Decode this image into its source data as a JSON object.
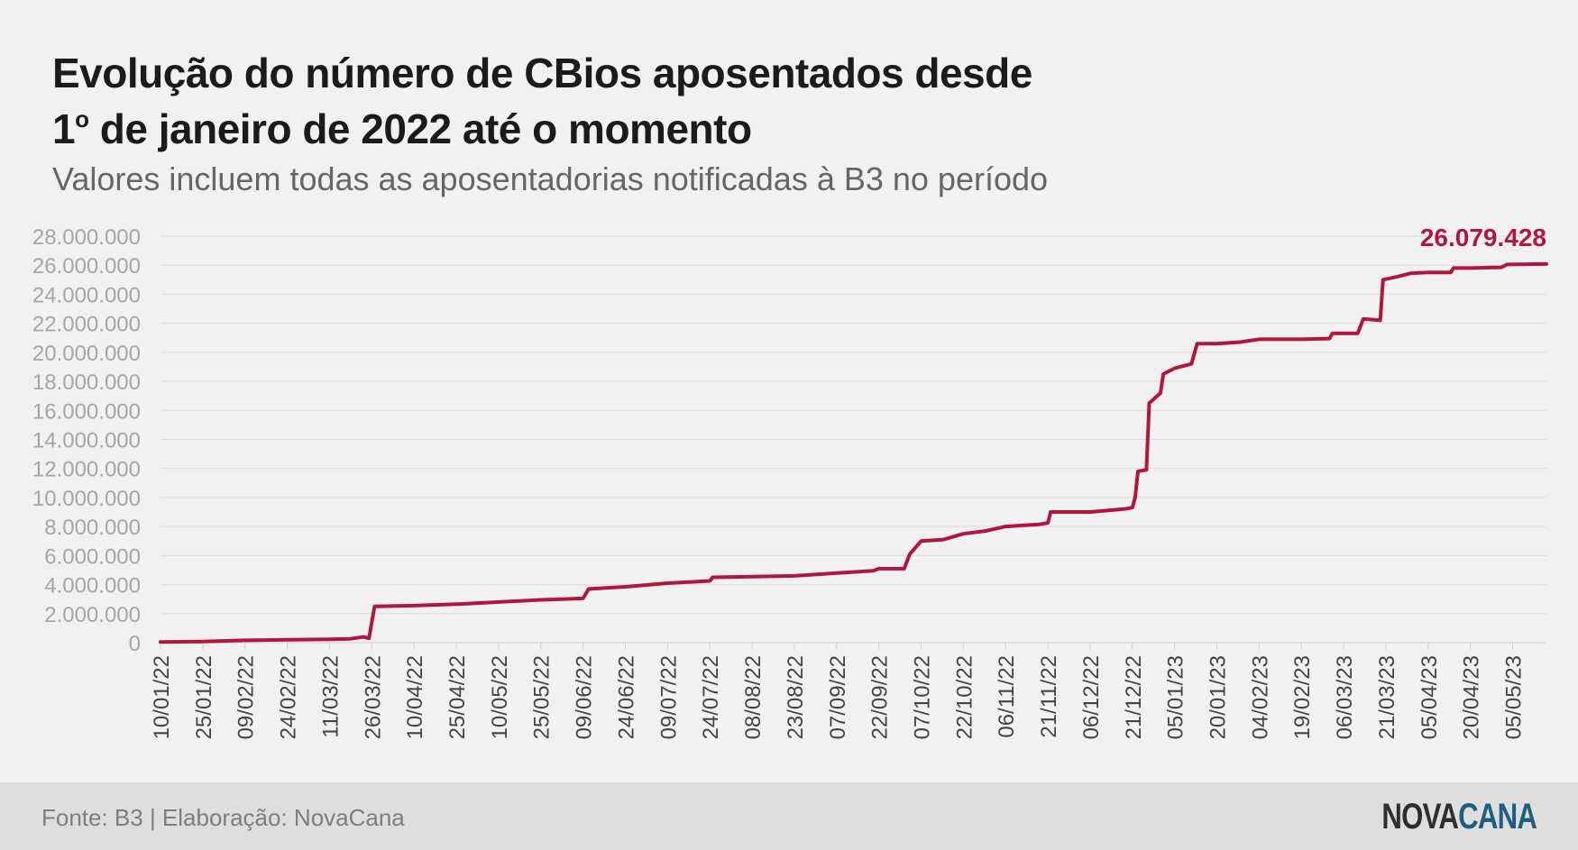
{
  "header": {
    "title_line1": "Evolução do número de CBios aposentados desde",
    "title_line2_prefix": "1",
    "title_line2_sup": "o",
    "title_line2_rest": " de janeiro de 2022 até o momento",
    "subtitle": "Valores incluem todas as aposentadorias notificadas à B3 no período"
  },
  "footer": {
    "source": "Fonte: B3 | Elaboração: NovaCana",
    "logo_part1": "NOVA",
    "logo_part2": "CANA"
  },
  "colors": {
    "line": "#b0173f",
    "last_label": "#b0173f",
    "grid": "#dcdcdc",
    "tick_label": "#a6a6a6"
  },
  "chart_data": {
    "type": "line",
    "last_value_label": "26.079.428",
    "ylim": [
      0,
      28000000
    ],
    "yticks": [
      0,
      2000000,
      4000000,
      6000000,
      8000000,
      10000000,
      12000000,
      14000000,
      16000000,
      18000000,
      20000000,
      22000000,
      24000000,
      26000000,
      28000000
    ],
    "ytick_labels": [
      "0",
      "2.000.000",
      "4.000.000",
      "6.000.000",
      "8.000.000",
      "10.000.000",
      "12.000.000",
      "14.000.000",
      "16.000.000",
      "18.000.000",
      "20.000.000",
      "22.000.000",
      "24.000.000",
      "26.000.000",
      "28.000.000"
    ],
    "xlim": [
      "2022-01-10",
      "2023-05-17"
    ],
    "xticks": [
      "2022-01-10",
      "2022-01-25",
      "2022-02-09",
      "2022-02-24",
      "2022-03-11",
      "2022-03-26",
      "2022-04-10",
      "2022-04-25",
      "2022-05-10",
      "2022-05-25",
      "2022-06-09",
      "2022-06-24",
      "2022-07-09",
      "2022-07-24",
      "2022-08-08",
      "2022-08-23",
      "2022-09-07",
      "2022-09-22",
      "2022-10-07",
      "2022-10-22",
      "2022-11-06",
      "2022-11-21",
      "2022-12-06",
      "2022-12-21",
      "2023-01-05",
      "2023-01-20",
      "2023-02-04",
      "2023-02-19",
      "2023-03-06",
      "2023-03-21",
      "2023-04-05",
      "2023-04-20",
      "2023-05-05"
    ],
    "xtick_labels": [
      "10/01/22",
      "25/01/22",
      "09/02/22",
      "24/02/22",
      "11/03/22",
      "26/03/22",
      "10/04/22",
      "25/04/22",
      "10/05/22",
      "25/05/22",
      "09/06/22",
      "24/06/22",
      "09/07/22",
      "24/07/22",
      "08/08/22",
      "23/08/22",
      "07/09/22",
      "22/09/22",
      "07/10/22",
      "22/10/22",
      "06/11/22",
      "21/11/22",
      "06/12/22",
      "21/12/22",
      "05/01/23",
      "20/01/23",
      "04/02/23",
      "19/02/23",
      "06/03/23",
      "21/03/23",
      "05/04/23",
      "20/04/23",
      "05/05/23"
    ],
    "series": [
      {
        "points": [
          [
            "2022-01-10",
            50000
          ],
          [
            "2022-01-25",
            80000
          ],
          [
            "2022-02-09",
            160000
          ],
          [
            "2022-02-24",
            200000
          ],
          [
            "2022-03-11",
            230000
          ],
          [
            "2022-03-18",
            260000
          ],
          [
            "2022-03-23",
            400000
          ],
          [
            "2022-03-25",
            300000
          ],
          [
            "2022-03-27",
            2500000
          ],
          [
            "2022-04-10",
            2550000
          ],
          [
            "2022-04-25",
            2650000
          ],
          [
            "2022-05-10",
            2800000
          ],
          [
            "2022-05-25",
            2950000
          ],
          [
            "2022-06-09",
            3050000
          ],
          [
            "2022-06-11",
            3700000
          ],
          [
            "2022-06-24",
            3850000
          ],
          [
            "2022-07-09",
            4100000
          ],
          [
            "2022-07-24",
            4250000
          ],
          [
            "2022-07-25",
            4500000
          ],
          [
            "2022-08-08",
            4550000
          ],
          [
            "2022-08-23",
            4600000
          ],
          [
            "2022-09-07",
            4800000
          ],
          [
            "2022-09-20",
            4950000
          ],
          [
            "2022-09-22",
            5100000
          ],
          [
            "2022-10-01",
            5100000
          ],
          [
            "2022-10-03",
            6100000
          ],
          [
            "2022-10-07",
            7000000
          ],
          [
            "2022-10-15",
            7100000
          ],
          [
            "2022-10-22",
            7500000
          ],
          [
            "2022-10-30",
            7700000
          ],
          [
            "2022-11-06",
            8000000
          ],
          [
            "2022-11-18",
            8150000
          ],
          [
            "2022-11-21",
            8250000
          ],
          [
            "2022-11-22",
            9000000
          ],
          [
            "2022-12-06",
            9000000
          ],
          [
            "2022-12-18",
            9200000
          ],
          [
            "2022-12-21",
            9300000
          ],
          [
            "2022-12-22",
            10000000
          ],
          [
            "2022-12-23",
            11800000
          ],
          [
            "2022-12-26",
            11900000
          ],
          [
            "2022-12-27",
            16500000
          ],
          [
            "2022-12-31",
            17200000
          ],
          [
            "2023-01-01",
            18500000
          ],
          [
            "2023-01-05",
            18900000
          ],
          [
            "2023-01-11",
            19200000
          ],
          [
            "2023-01-13",
            20600000
          ],
          [
            "2023-01-20",
            20600000
          ],
          [
            "2023-01-28",
            20700000
          ],
          [
            "2023-02-04",
            20900000
          ],
          [
            "2023-02-19",
            20900000
          ],
          [
            "2023-03-01",
            20950000
          ],
          [
            "2023-03-02",
            21300000
          ],
          [
            "2023-03-11",
            21300000
          ],
          [
            "2023-03-13",
            22300000
          ],
          [
            "2023-03-19",
            22200000
          ],
          [
            "2023-03-20",
            25000000
          ],
          [
            "2023-03-25",
            25200000
          ],
          [
            "2023-03-30",
            25450000
          ],
          [
            "2023-04-05",
            25500000
          ],
          [
            "2023-04-13",
            25500000
          ],
          [
            "2023-04-14",
            25800000
          ],
          [
            "2023-04-20",
            25800000
          ],
          [
            "2023-05-01",
            25850000
          ],
          [
            "2023-05-03",
            26050000
          ],
          [
            "2023-05-17",
            26079428
          ]
        ]
      }
    ]
  }
}
